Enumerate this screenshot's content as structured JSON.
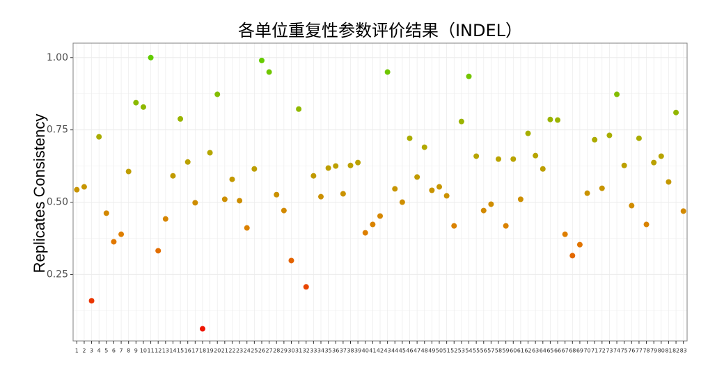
{
  "chart_data": {
    "type": "scatter",
    "title": "各单位重复性参数评价结果（INDEL）",
    "y_label": "Replicates Consistency",
    "categories": [
      "1",
      "2",
      "3",
      "4",
      "5",
      "6",
      "7",
      "8",
      "9",
      "10",
      "11",
      "12",
      "13",
      "14",
      "15",
      "16",
      "17",
      "18",
      "19",
      "20",
      "21",
      "22",
      "23",
      "24",
      "25",
      "26",
      "27",
      "28",
      "29",
      "30",
      "31",
      "32",
      "33",
      "34",
      "35",
      "36",
      "37",
      "38",
      "39",
      "40",
      "41",
      "42",
      "43",
      "44",
      "45",
      "46",
      "47",
      "48",
      "49",
      "50",
      "51",
      "52",
      "53",
      "54",
      "55",
      "56",
      "57",
      "58",
      "59",
      "60",
      "61",
      "62",
      "63",
      "64",
      "65",
      "66",
      "67",
      "68",
      "69",
      "70",
      "71",
      "72",
      "73",
      "74",
      "75",
      "76",
      "77",
      "78",
      "79",
      "80",
      "81",
      "82",
      "83"
    ],
    "values": [
      0.543,
      0.553,
      0.159,
      0.726,
      0.462,
      0.363,
      0.389,
      0.606,
      0.844,
      0.829,
      1.0,
      0.332,
      0.442,
      0.591,
      0.788,
      0.639,
      0.498,
      0.062,
      0.671,
      0.873,
      0.51,
      0.579,
      0.505,
      0.411,
      0.615,
      0.99,
      0.95,
      0.526,
      0.471,
      0.298,
      0.822,
      0.207,
      0.591,
      0.519,
      0.618,
      0.625,
      0.529,
      0.627,
      0.637,
      0.394,
      0.423,
      0.452,
      0.95,
      0.546,
      0.5,
      0.721,
      0.587,
      0.69,
      0.541,
      0.553,
      0.522,
      0.418,
      0.779,
      0.935,
      0.659,
      0.471,
      0.493,
      0.649,
      0.418,
      0.649,
      0.51,
      0.738,
      0.661,
      0.615,
      0.786,
      0.784,
      0.389,
      0.315,
      0.353,
      0.531,
      0.716,
      0.548,
      0.731,
      0.873,
      0.627,
      0.488,
      0.721,
      0.423,
      0.637,
      0.659,
      0.57,
      0.81,
      0.469
    ],
    "colors": [
      "#ee1500",
      "#e07c00",
      "#b3a800",
      "#62cc00"
    ],
    "ylim": [
      0.02,
      1.05
    ],
    "yticks": [
      {
        "value": 0.25,
        "label": "0.25"
      },
      {
        "value": 0.5,
        "label": "0.50"
      },
      {
        "value": 0.75,
        "label": "0.75"
      },
      {
        "value": 1.0,
        "label": "1.00"
      }
    ],
    "grid": true
  }
}
